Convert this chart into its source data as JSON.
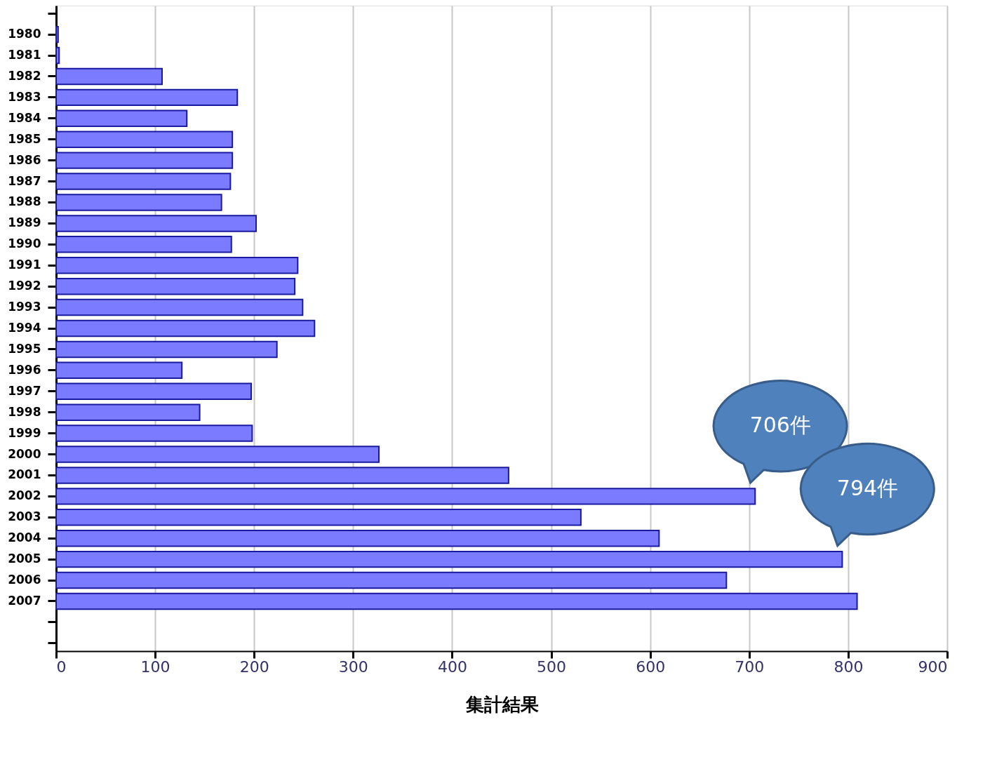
{
  "chart_data": {
    "type": "bar",
    "orientation": "horizontal",
    "xlabel": "集計結果",
    "categories": [
      null,
      "1980",
      "1981",
      "1982",
      "1983",
      "1984",
      "1985",
      "1986",
      "1987",
      "1988",
      "1989",
      "1990",
      "1991",
      "1992",
      "1993",
      "1994",
      "1995",
      "1996",
      "1997",
      "1998",
      "1999",
      "2000",
      "2001",
      "2002",
      "2003",
      "2004",
      "2005",
      "2006",
      "2007",
      null,
      null
    ],
    "values": [
      null,
      2,
      3,
      107,
      183,
      132,
      178,
      178,
      176,
      167,
      202,
      177,
      244,
      241,
      249,
      261,
      223,
      127,
      197,
      145,
      198,
      326,
      457,
      706,
      530,
      609,
      794,
      677,
      809,
      null,
      null
    ],
    "color": "#7b7bff",
    "xlim": [
      0,
      900
    ],
    "xticks": [
      0,
      100,
      200,
      300,
      400,
      500,
      600,
      700,
      800,
      900
    ],
    "grid": "x",
    "annotations": [
      {
        "text": "706件",
        "x": 706,
        "y": "2002"
      },
      {
        "text": "794件",
        "x": 794,
        "y": "2005"
      }
    ]
  }
}
